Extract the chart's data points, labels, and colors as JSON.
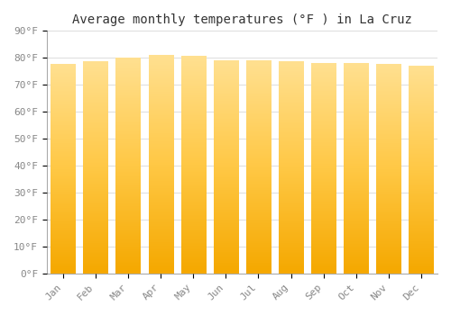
{
  "title": "Average monthly temperatures (°F ) in La Cruz",
  "months": [
    "Jan",
    "Feb",
    "Mar",
    "Apr",
    "May",
    "Jun",
    "Jul",
    "Aug",
    "Sep",
    "Oct",
    "Nov",
    "Dec"
  ],
  "values": [
    77.5,
    78.5,
    80.0,
    81.0,
    80.5,
    79.0,
    79.0,
    78.5,
    78.0,
    78.0,
    77.5,
    77.0
  ],
  "ylim": [
    0,
    90
  ],
  "yticks": [
    0,
    10,
    20,
    30,
    40,
    50,
    60,
    70,
    80,
    90
  ],
  "ytick_labels": [
    "0°F",
    "10°F",
    "20°F",
    "30°F",
    "40°F",
    "50°F",
    "60°F",
    "70°F",
    "80°F",
    "90°F"
  ],
  "bar_color_bottom": "#F5A800",
  "bar_color_mid": "#FFC845",
  "bar_color_top": "#FFE090",
  "background_color": "#FFFFFF",
  "plot_bg_color": "#FFFFFF",
  "grid_color": "#DDDDDD",
  "title_fontsize": 10,
  "tick_fontsize": 8,
  "bar_width": 0.75
}
